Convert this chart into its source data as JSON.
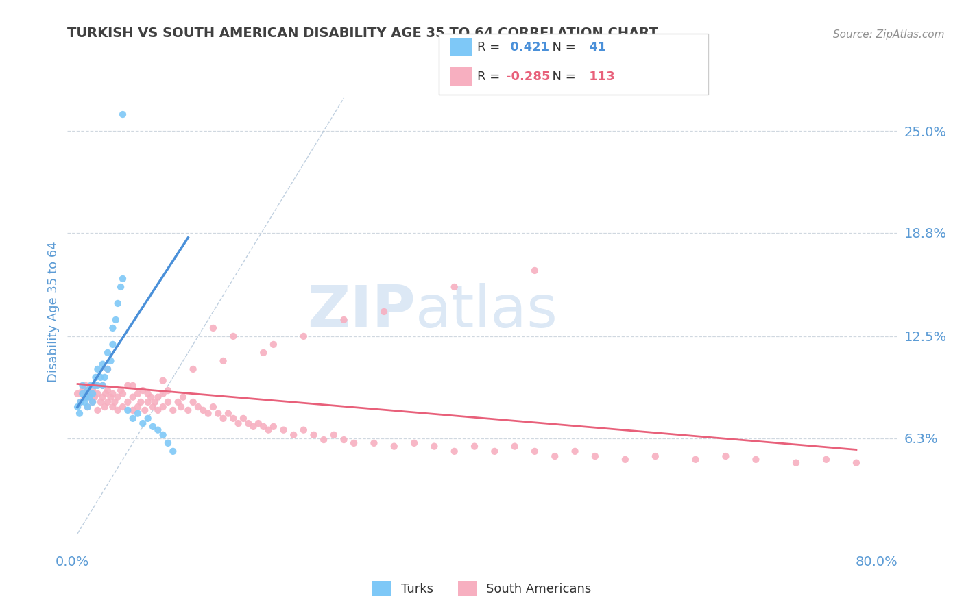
{
  "title": "TURKISH VS SOUTH AMERICAN DISABILITY AGE 35 TO 64 CORRELATION CHART",
  "source_text": "Source: ZipAtlas.com",
  "ylabel": "Disability Age 35 to 64",
  "xlim": [
    -0.005,
    0.82
  ],
  "ylim": [
    -0.005,
    0.285
  ],
  "yticks": [
    0.063,
    0.125,
    0.188,
    0.25
  ],
  "ytick_labels": [
    "6.3%",
    "12.5%",
    "18.8%",
    "25.0%"
  ],
  "xtick_labels": [
    "0.0%",
    "80.0%"
  ],
  "turks_color": "#7ec8f7",
  "sa_color": "#f7afc0",
  "turks_line_color": "#4a90d9",
  "sa_line_color": "#e8607a",
  "diag_color": "#b0c4d8",
  "legend_entries": [
    {
      "label_r": "R = ",
      "r_val": " 0.421",
      "label_n": "  N = ",
      "n_val": " 41",
      "color": "#7ec8f7"
    },
    {
      "label_r": "R = ",
      "r_val": "-0.285",
      "label_n": "  N = ",
      "n_val": " 113",
      "color": "#f7afc0"
    }
  ],
  "turks_scatter_x": [
    0.005,
    0.007,
    0.008,
    0.01,
    0.01,
    0.012,
    0.013,
    0.015,
    0.015,
    0.017,
    0.018,
    0.02,
    0.02,
    0.022,
    0.023,
    0.025,
    0.025,
    0.028,
    0.03,
    0.03,
    0.032,
    0.035,
    0.035,
    0.038,
    0.04,
    0.04,
    0.043,
    0.045,
    0.048,
    0.05,
    0.055,
    0.06,
    0.065,
    0.07,
    0.075,
    0.08,
    0.085,
    0.09,
    0.095,
    0.1,
    0.05
  ],
  "turks_scatter_y": [
    0.082,
    0.078,
    0.085,
    0.09,
    0.095,
    0.085,
    0.088,
    0.092,
    0.082,
    0.088,
    0.095,
    0.09,
    0.085,
    0.095,
    0.1,
    0.105,
    0.095,
    0.1,
    0.108,
    0.095,
    0.1,
    0.105,
    0.115,
    0.11,
    0.12,
    0.13,
    0.135,
    0.145,
    0.155,
    0.16,
    0.08,
    0.075,
    0.078,
    0.072,
    0.075,
    0.07,
    0.068,
    0.065,
    0.06,
    0.055,
    0.26
  ],
  "sa_scatter_x": [
    0.005,
    0.008,
    0.01,
    0.012,
    0.013,
    0.015,
    0.015,
    0.018,
    0.02,
    0.02,
    0.022,
    0.023,
    0.025,
    0.025,
    0.028,
    0.03,
    0.03,
    0.032,
    0.033,
    0.035,
    0.035,
    0.038,
    0.04,
    0.04,
    0.042,
    0.045,
    0.045,
    0.048,
    0.05,
    0.05,
    0.055,
    0.055,
    0.06,
    0.06,
    0.065,
    0.065,
    0.068,
    0.07,
    0.072,
    0.075,
    0.075,
    0.078,
    0.08,
    0.082,
    0.085,
    0.085,
    0.09,
    0.09,
    0.095,
    0.095,
    0.1,
    0.105,
    0.108,
    0.11,
    0.115,
    0.12,
    0.125,
    0.13,
    0.135,
    0.14,
    0.145,
    0.15,
    0.155,
    0.16,
    0.165,
    0.17,
    0.175,
    0.18,
    0.185,
    0.19,
    0.195,
    0.2,
    0.21,
    0.22,
    0.23,
    0.24,
    0.25,
    0.26,
    0.27,
    0.28,
    0.3,
    0.32,
    0.34,
    0.36,
    0.38,
    0.4,
    0.42,
    0.44,
    0.46,
    0.48,
    0.5,
    0.52,
    0.55,
    0.58,
    0.62,
    0.65,
    0.68,
    0.72,
    0.75,
    0.78,
    0.14,
    0.16,
    0.2,
    0.38,
    0.46,
    0.31,
    0.27,
    0.23,
    0.19,
    0.15,
    0.12,
    0.09,
    0.06,
    0.035
  ],
  "sa_scatter_y": [
    0.09,
    0.085,
    0.092,
    0.088,
    0.095,
    0.088,
    0.082,
    0.09,
    0.085,
    0.092,
    0.088,
    0.095,
    0.08,
    0.09,
    0.085,
    0.088,
    0.095,
    0.082,
    0.09,
    0.085,
    0.092,
    0.088,
    0.082,
    0.09,
    0.085,
    0.08,
    0.088,
    0.092,
    0.082,
    0.09,
    0.085,
    0.095,
    0.08,
    0.088,
    0.082,
    0.09,
    0.085,
    0.092,
    0.08,
    0.085,
    0.09,
    0.088,
    0.082,
    0.085,
    0.08,
    0.088,
    0.082,
    0.09,
    0.085,
    0.092,
    0.08,
    0.085,
    0.082,
    0.088,
    0.08,
    0.085,
    0.082,
    0.08,
    0.078,
    0.082,
    0.078,
    0.075,
    0.078,
    0.075,
    0.072,
    0.075,
    0.072,
    0.07,
    0.072,
    0.07,
    0.068,
    0.07,
    0.068,
    0.065,
    0.068,
    0.065,
    0.062,
    0.065,
    0.062,
    0.06,
    0.06,
    0.058,
    0.06,
    0.058,
    0.055,
    0.058,
    0.055,
    0.058,
    0.055,
    0.052,
    0.055,
    0.052,
    0.05,
    0.052,
    0.05,
    0.052,
    0.05,
    0.048,
    0.05,
    0.048,
    0.13,
    0.125,
    0.12,
    0.155,
    0.165,
    0.14,
    0.135,
    0.125,
    0.115,
    0.11,
    0.105,
    0.098,
    0.095,
    0.105
  ],
  "turks_line_x": [
    0.005,
    0.115
  ],
  "turks_line_y": [
    0.082,
    0.185
  ],
  "sa_line_x": [
    0.005,
    0.78
  ],
  "sa_line_y": [
    0.096,
    0.056
  ],
  "diag_line_x": [
    0.005,
    0.27
  ],
  "diag_line_y": [
    0.005,
    0.27
  ],
  "background_color": "#ffffff",
  "grid_color": "#d0d8e0",
  "title_color": "#404040",
  "axis_color": "#5b9bd5",
  "source_color": "#909090"
}
